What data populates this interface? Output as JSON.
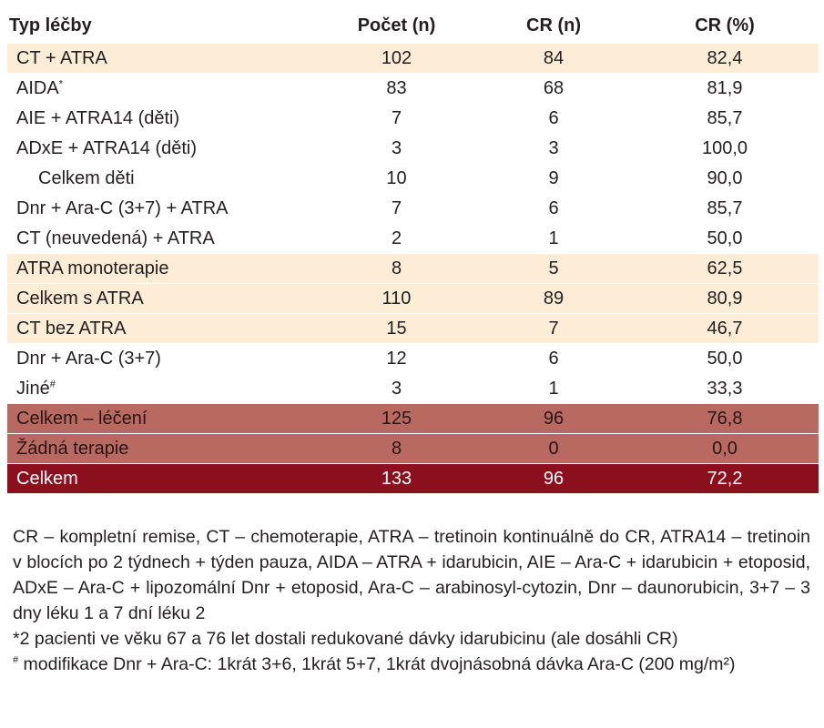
{
  "table": {
    "headers": [
      "Typ léčby",
      "Počet (n)",
      "CR (n)",
      "CR (%)"
    ],
    "rows": [
      {
        "style": "light",
        "label": "CT + ATRA",
        "count": "102",
        "cr_n": "84",
        "cr_pct": "82,4"
      },
      {
        "style": "plain",
        "label": "AIDA",
        "label_sup": "*",
        "count": "83",
        "cr_n": "68",
        "cr_pct": "81,9"
      },
      {
        "style": "plain",
        "label": "AIE + ATRA14 (děti)",
        "count": "7",
        "cr_n": "6",
        "cr_pct": "85,7"
      },
      {
        "style": "plain",
        "label": "ADxE + ATRA14 (děti)",
        "count": "3",
        "cr_n": "3",
        "cr_pct": "100,0"
      },
      {
        "style": "plain",
        "indent": true,
        "label": "Celkem děti",
        "count": "10",
        "cr_n": "9",
        "cr_pct": "90,0"
      },
      {
        "style": "plain",
        "label": "Dnr + Ara-C (3+7) + ATRA",
        "count": "7",
        "cr_n": "6",
        "cr_pct": "85,7"
      },
      {
        "style": "plain",
        "label": "CT (neuvedená) + ATRA",
        "count": "2",
        "cr_n": "1",
        "cr_pct": "50,0"
      },
      {
        "style": "light",
        "label": "ATRA monoterapie",
        "count": "8",
        "cr_n": "5",
        "cr_pct": "62,5"
      },
      {
        "style": "light",
        "label": "Celkem s ATRA",
        "count": "110",
        "cr_n": "89",
        "cr_pct": "80,9"
      },
      {
        "style": "light",
        "label": "CT bez ATRA",
        "count": "15",
        "cr_n": "7",
        "cr_pct": "46,7"
      },
      {
        "style": "plain",
        "label": "Dnr + Ara-C (3+7)",
        "count": "12",
        "cr_n": "6",
        "cr_pct": "50,0"
      },
      {
        "style": "plain",
        "label": "Jiné",
        "label_sup": "#",
        "count": "3",
        "cr_n": "1",
        "cr_pct": "33,3"
      },
      {
        "style": "dark",
        "label": "Celkem – léčení",
        "count": "125",
        "cr_n": "96",
        "cr_pct": "76,8"
      },
      {
        "style": "dark",
        "label": "Žádná terapie",
        "count": "8",
        "cr_n": "0",
        "cr_pct": "0,0"
      },
      {
        "style": "total",
        "label": "Celkem",
        "count": "133",
        "cr_n": "96",
        "cr_pct": "72,2"
      }
    ]
  },
  "notes": {
    "abbreviations": "CR – kompletní remise, CT – chemoterapie, ATRA – tretinoin kontinuálně do CR, ATRA14 – tretinoin v blocích po 2 týdnech + týden pauza, AIDA – ATRA + idarubicin, AIE – Ara-C + idarubicin + etoposid, ADxE – Ara-C + lipozomální Dnr + etoposid, Ara-C – arabinosyl-cytozin, Dnr – daunorubicin, 3+7 – 3 dny léku 1 a 7 dní léku 2",
    "note_star": "*2 pacienti ve věku 67 a 76 let dostali redukované dávky idarubicinu (ale dosáhli CR)",
    "note_hash_mark": "#",
    "note_hash": " modifikace Dnr + Ara-C: 1krát 3+6, 1krát 5+7, 1krát dvojnásobná dávka Ara-C (200 mg/m²)"
  },
  "colors": {
    "light_row": "#fdecd6",
    "dark_row": "#b96a60",
    "total_row": "#8c0f1e"
  }
}
